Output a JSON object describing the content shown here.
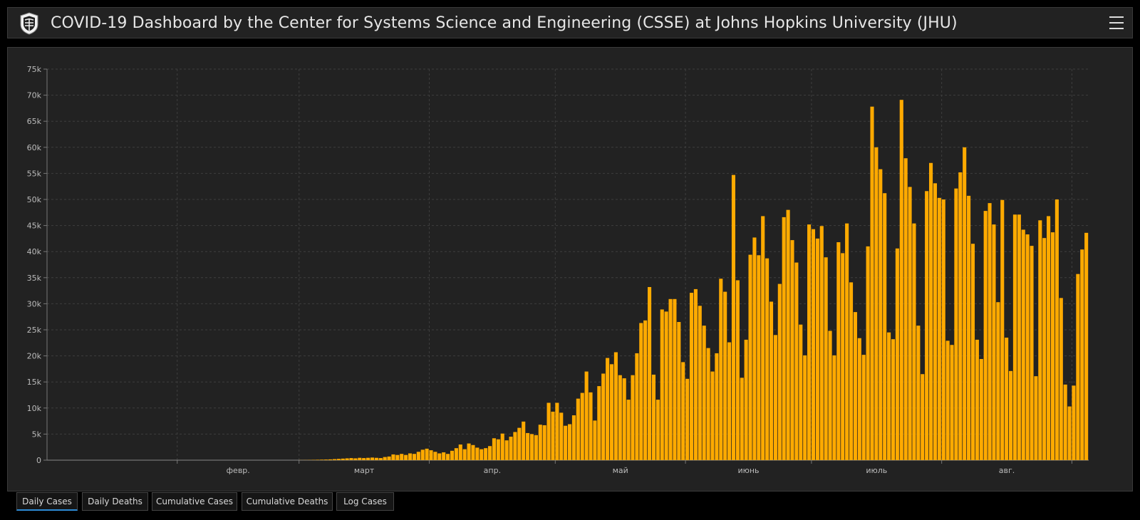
{
  "header": {
    "title": "COVID-19 Dashboard by the Center for Systems Science and Engineering (CSSE) at Johns Hopkins University (JHU)",
    "logo_icon": "jhu-shield-icon",
    "menu_icon": "hamburger-menu-icon"
  },
  "tabs": [
    {
      "label": "Daily Cases",
      "active": true
    },
    {
      "label": "Daily Deaths",
      "active": false
    },
    {
      "label": "Cumulative Cases",
      "active": false
    },
    {
      "label": "Cumulative Deaths",
      "active": false
    },
    {
      "label": "Log Cases",
      "active": false
    }
  ],
  "chart_data": {
    "type": "bar",
    "bar_color": "#ffaa00",
    "ylim": [
      0,
      75000
    ],
    "y_ticks": [
      "0",
      "5k",
      "10k",
      "15k",
      "20k",
      "25k",
      "30k",
      "35k",
      "40k",
      "45k",
      "50k",
      "55k",
      "60k",
      "65k",
      "70k",
      "75k"
    ],
    "x_ticks": [
      "февр.",
      "март",
      "апр.",
      "май",
      "июнь",
      "июль",
      "авг."
    ],
    "grid": true,
    "values": [
      0,
      0,
      0,
      0,
      0,
      0,
      0,
      0,
      0,
      0,
      0,
      0,
      0,
      0,
      0,
      0,
      0,
      0,
      0,
      0,
      0,
      0,
      0,
      0,
      0,
      0,
      0,
      0,
      0,
      0,
      0,
      0,
      0,
      0,
      0,
      0,
      0,
      0,
      0,
      0,
      0,
      0,
      0,
      0,
      0,
      0,
      0,
      0,
      0,
      0,
      0,
      0,
      0,
      0,
      0,
      0,
      0,
      0,
      0,
      0,
      20,
      30,
      40,
      60,
      80,
      100,
      120,
      150,
      200,
      250,
      300,
      350,
      400,
      350,
      450,
      400,
      450,
      500,
      450,
      400,
      600,
      700,
      1100,
      1000,
      1200,
      1000,
      1300,
      1200,
      1600,
      2000,
      2200,
      1900,
      1600,
      1300,
      1500,
      1200,
      1800,
      2300,
      3000,
      2100,
      3200,
      2900,
      2400,
      2100,
      2300,
      2700,
      4200,
      4000,
      5100,
      3800,
      4500,
      5400,
      6200,
      7400,
      5200,
      5000,
      4800,
      6800,
      6700,
      11000,
      9300,
      11000,
      9100,
      6600,
      6900,
      8600,
      11800,
      12900,
      17000,
      13000,
      7600,
      14200,
      16600,
      19600,
      18400,
      20700,
      16300,
      15700,
      11600,
      16300,
      20500,
      26300,
      26800,
      33200,
      16400,
      11600,
      28900,
      28500,
      30900,
      30900,
      26500,
      18800,
      15600,
      32100,
      32800,
      29600,
      25800,
      21500,
      17000,
      20500,
      34800,
      32300,
      22600,
      54700,
      34500,
      15800,
      23100,
      39400,
      42700,
      39300,
      46800,
      38700,
      30400,
      24000,
      33800,
      46600,
      48000,
      42200,
      37900,
      26000,
      20100,
      45200,
      44300,
      42500,
      44900,
      38900,
      24800,
      20100,
      41800,
      39700,
      45400,
      34100,
      28400,
      23400,
      20200,
      41000,
      67800,
      60000,
      55800,
      51200,
      24500,
      23200,
      40600,
      69100,
      57900,
      52400,
      45400,
      25800,
      16500,
      51600,
      57000,
      53100,
      50300,
      50000,
      22900,
      22100,
      52100,
      55200,
      60000,
      50700,
      41500,
      23100,
      19400,
      47800,
      49300,
      45200,
      30300,
      49900,
      23500,
      17100,
      47100,
      47100,
      44200,
      43300,
      41100,
      16100,
      46000,
      42600,
      46800,
      43700,
      50000,
      31100,
      14500,
      10300,
      14300,
      35700,
      40400,
      43600
    ]
  }
}
